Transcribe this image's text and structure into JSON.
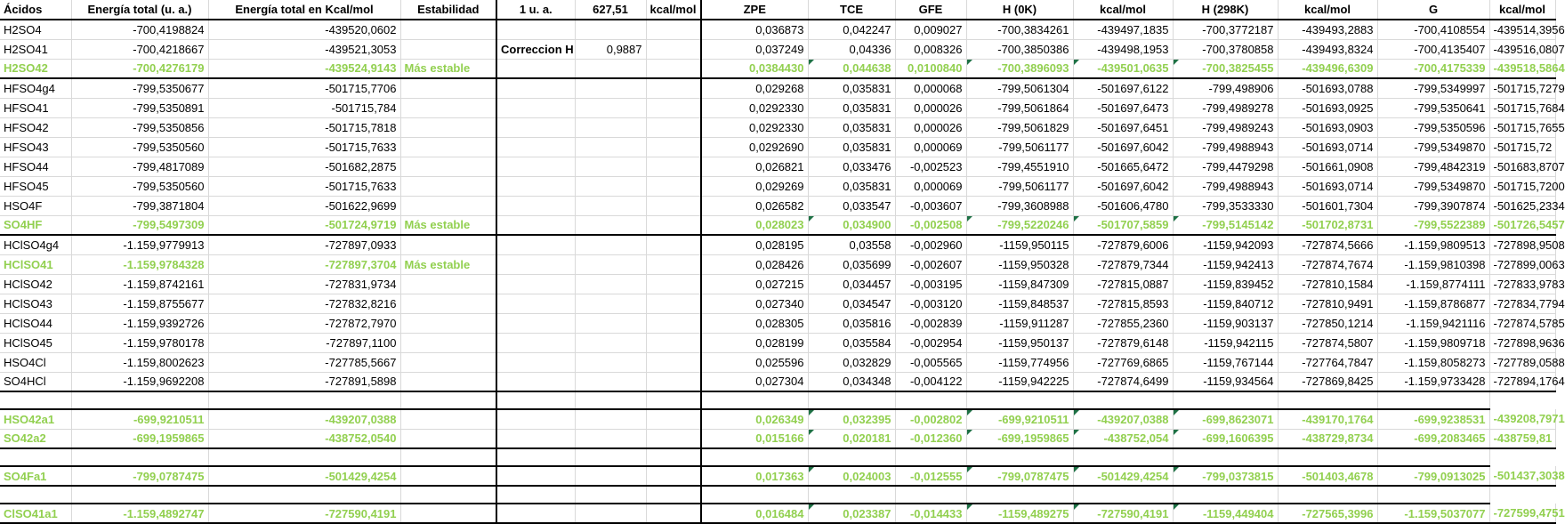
{
  "headers": {
    "acid": "Ácidos",
    "energy_ua": "Energía total (u. a.)",
    "energy_kcal": "Energía total en Kcal/mol",
    "stability": "Estabilidad",
    "one_ua": "1 u. a.",
    "conv_value": "627,51",
    "conv_unit": "kcal/mol",
    "zpe": "ZPE",
    "tce": "TCE",
    "gfe": "GFE",
    "h0k": "H (0K)",
    "kcal1": "kcal/mol",
    "h298k": "H (298K)",
    "kcal2": "kcal/mol",
    "g": "G",
    "kcal3": "kcal/mol"
  },
  "correction": {
    "label": "Correccion H",
    "value": "0,9887"
  },
  "rows": [
    [
      "H2SO4",
      "-700,4198824",
      "-439520,0602",
      "",
      "0,036873",
      "0,042247",
      "0,009027",
      "-700,3834261",
      "-439497,1835",
      "-700,3772187",
      "-439493,2883",
      "-700,4108554",
      "-439514,3956"
    ],
    [
      "H2SO41",
      "-700,4218667",
      "-439521,3053",
      "",
      "0,037249",
      "0,04336",
      "0,008326",
      "-700,3850386",
      "-439498,1953",
      "-700,3780858",
      "-439493,8324",
      "-700,4135407",
      "-439516,0807"
    ],
    [
      "H2SO42",
      "-700,4276179",
      "-439524,9143",
      "Más estable",
      "0,0384430",
      "0,044638",
      "0,0100840",
      "-700,3896093",
      "-439501,0635",
      "-700,3825455",
      "-439496,6309",
      "-700,4175339",
      "-439518,5864"
    ],
    [
      "HFSO4g4",
      "-799,5350677",
      "-501715,7706",
      "",
      "0,029268",
      "0,035831",
      "0,000068",
      "-799,5061304",
      "-501697,6122",
      "-799,498906",
      "-501693,0788",
      "-799,5349997",
      "-501715,7279"
    ],
    [
      "HFSO41",
      "-799,5350891",
      "-501715,784",
      "",
      "0,0292330",
      "0,035831",
      "0,000026",
      "-799,5061864",
      "-501697,6473",
      "-799,4989278",
      "-501693,0925",
      "-799,5350641",
      "-501715,7684"
    ],
    [
      "HFSO42",
      "-799,5350856",
      "-501715,7818",
      "",
      "0,0292330",
      "0,035831",
      "0,000026",
      "-799,5061829",
      "-501697,6451",
      "-799,4989243",
      "-501693,0903",
      "-799,5350596",
      "-501715,7655"
    ],
    [
      "HFSO43",
      "-799,5350560",
      "-501715,7633",
      "",
      "0,0292690",
      "0,035831",
      "0,000069",
      "-799,5061177",
      "-501697,6042",
      "-799,4988943",
      "-501693,0714",
      "-799,5349870",
      "-501715,72"
    ],
    [
      "HFSO44",
      "-799,4817089",
      "-501682,2875",
      "",
      "0,026821",
      "0,033476",
      "-0,002523",
      "-799,4551910",
      "-501665,6472",
      "-799,4479298",
      "-501661,0908",
      "-799,4842319",
      "-501683,8707"
    ],
    [
      "HFSO45",
      "-799,5350560",
      "-501715,7633",
      "",
      "0,029269",
      "0,035831",
      "0,000069",
      "-799,5061177",
      "-501697,6042",
      "-799,4988943",
      "-501693,0714",
      "-799,5349870",
      "-501715,7200"
    ],
    [
      "HSO4F",
      "-799,3871804",
      "-501622,9699",
      "",
      "0,026582",
      "0,033547",
      "-0,003607",
      "-799,3608988",
      "-501606,4780",
      "-799,3533330",
      "-501601,7304",
      "-799,3907874",
      "-501625,2334"
    ],
    [
      "SO4HF",
      "-799,5497309",
      "-501724,9719",
      "Más estable",
      "0,028023",
      "0,034900",
      "-0,002508",
      "-799,5220246",
      "-501707,5859",
      "-799,5145142",
      "-501702,8731",
      "-799,5522389",
      "-501726,5457"
    ],
    [
      "HClSO4g4",
      "-1.159,9779913",
      "-727897,0933",
      "",
      "0,028195",
      "0,03558",
      "-0,002960",
      "-1159,950115",
      "-727879,6006",
      "-1159,942093",
      "-727874,5666",
      "-1.159,9809513",
      "-727898,9508"
    ],
    [
      "HClSO41",
      "-1.159,9784328",
      "-727897,3704",
      "Más estable",
      "0,028426",
      "0,035699",
      "-0,002607",
      "-1159,950328",
      "-727879,7344",
      "-1159,942413",
      "-727874,7674",
      "-1.159,9810398",
      "-727899,0063"
    ],
    [
      "HClSO42",
      "-1.159,8742161",
      "-727831,9734",
      "",
      "0,027215",
      "0,034457",
      "-0,003195",
      "-1159,847309",
      "-727815,0887",
      "-1159,839452",
      "-727810,1584",
      "-1.159,8774111",
      "-727833,9783"
    ],
    [
      "HClSO43",
      "-1.159,8755677",
      "-727832,8216",
      "",
      "0,027340",
      "0,034547",
      "-0,003120",
      "-1159,848537",
      "-727815,8593",
      "-1159,840712",
      "-727810,9491",
      "-1.159,8786877",
      "-727834,7794"
    ],
    [
      "HClSO44",
      "-1.159,9392726",
      "-727872,7970",
      "",
      "0,028305",
      "0,035816",
      "-0,002839",
      "-1159,911287",
      "-727855,2360",
      "-1159,903137",
      "-727850,1214",
      "-1.159,9421116",
      "-727874,5785"
    ],
    [
      "HClSO45",
      "-1.159,9780178",
      "-727897,1100",
      "",
      "0,028199",
      "0,035584",
      "-0,002954",
      "-1159,950137",
      "-727879,6148",
      "-1159,942115",
      "-727874,5807",
      "-1.159,9809718",
      "-727898,9636"
    ],
    [
      "HSO4Cl",
      "-1.159,8002623",
      "-727785,5667",
      "",
      "0,025596",
      "0,032829",
      "-0,005565",
      "-1159,774956",
      "-727769,6865",
      "-1159,767144",
      "-727764,7847",
      "-1.159,8058273",
      "-727789,0588"
    ],
    [
      "SO4HCl",
      "-1.159,9692208",
      "-727891,5898",
      "",
      "0,027304",
      "0,034348",
      "-0,004122",
      "-1159,942225",
      "-727874,6499",
      "-1159,934564",
      "-727869,8425",
      "-1.159,9733428",
      "-727894,1764"
    ],
    [
      "HSO42a1",
      "-699,9210511",
      "-439207,0388",
      "",
      "0,026349",
      "0,032395",
      "-0,002802",
      "-699,9210511",
      "-439207,0388",
      "-699,8623071",
      "-439170,1764",
      "-699,9238531",
      "-439208,7971"
    ],
    [
      "SO42a2",
      "-699,1959865",
      "-438752,0540",
      "",
      "0,015166",
      "0,020181",
      "-0,012360",
      "-699,1959865",
      "-438752,054",
      "-699,1606395",
      "-438729,8734",
      "-699,2083465",
      "-438759,81"
    ],
    [
      "SO4Fa1",
      "-799,0787475",
      "-501429,4254",
      "",
      "0,017363",
      "0,024003",
      "-0,012555",
      "-799,0787475",
      "-501429,4254",
      "-799,0373815",
      "-501403,4678",
      "-799,0913025",
      "-501437,3038"
    ],
    [
      "ClSO41a1",
      "-1.159,4892747",
      "-727590,4191",
      "",
      "0,016484",
      "0,023387",
      "-0,014433",
      "-1159,489275",
      "-727590,4191",
      "-1159,449404",
      "-727565,3996",
      "-1.159,5037077",
      "-727599,4751"
    ]
  ]
}
